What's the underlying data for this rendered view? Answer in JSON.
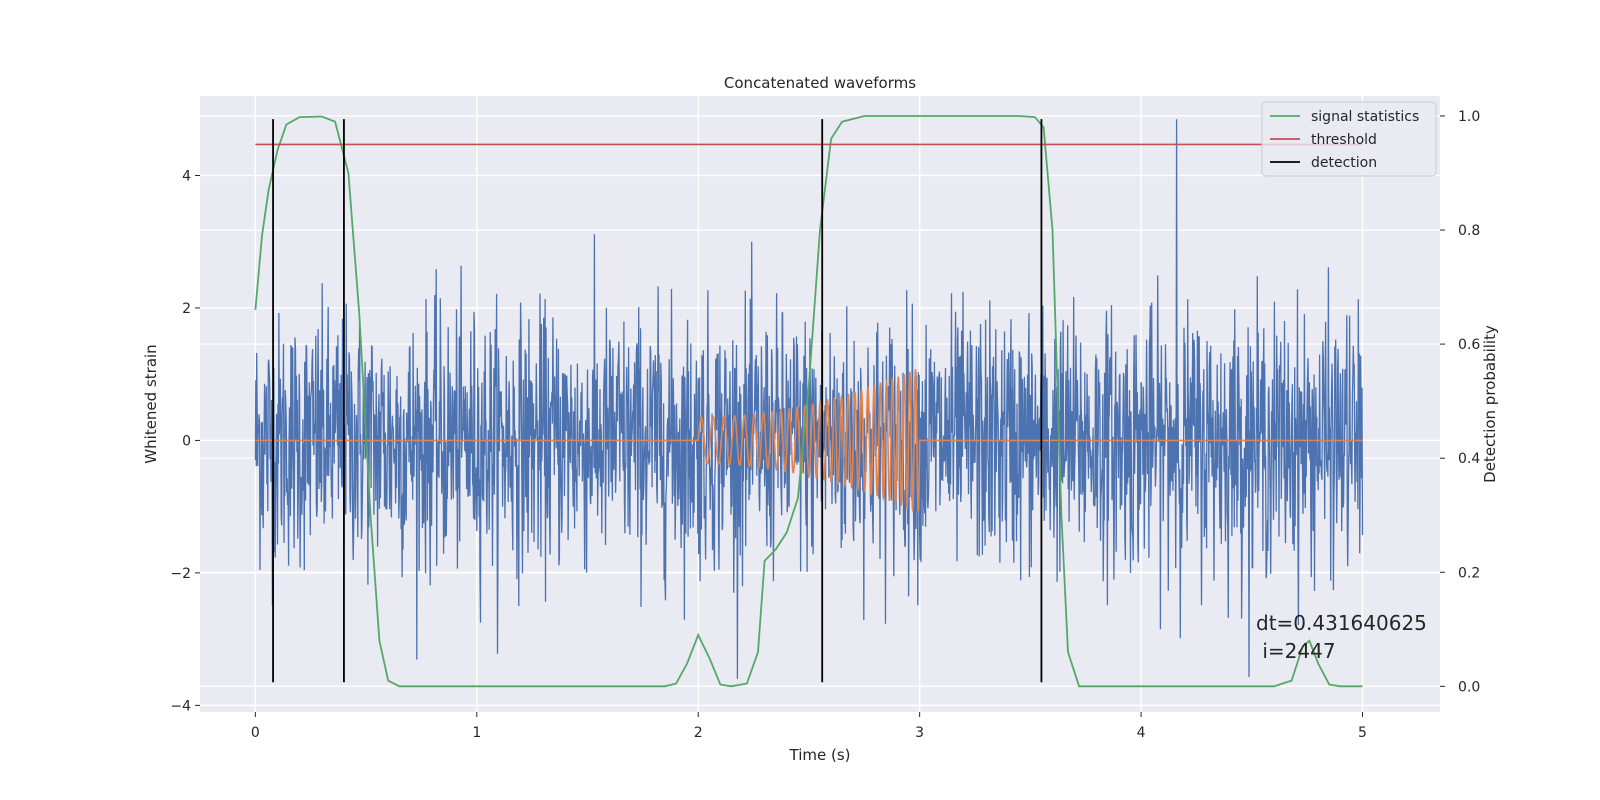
{
  "chart_data": {
    "type": "line",
    "title": "Concatenated waveforms",
    "xlabel": "Time (s)",
    "ylabel": "Whitened strain",
    "ylabel_right": "Detection probability",
    "xlim": [
      -0.25,
      5.35
    ],
    "ylim": [
      -4.1,
      5.2
    ],
    "ylim_right": [
      -0.045,
      1.035
    ],
    "xticks": [
      0,
      1,
      2,
      3,
      4,
      5
    ],
    "yticks": [
      -4,
      -2,
      0,
      2,
      4
    ],
    "yticks_right": [
      0.0,
      0.2,
      0.4,
      0.6,
      0.8,
      1.0
    ],
    "xtick_labels": [
      "0",
      "1",
      "2",
      "3",
      "4",
      "5"
    ],
    "ytick_labels": [
      "−4",
      "−2",
      "0",
      "2",
      "4"
    ],
    "ytick_right_labels": [
      "0.0",
      "0.2",
      "0.4",
      "0.6",
      "0.8",
      "1.0"
    ],
    "grid": true,
    "series": [
      {
        "name": "whitened strain (noise)",
        "axis": "left",
        "color": "#4c72b0",
        "description": "random noise, amplitude ~1, peaks to ~3.4, spike 4.85 at t=4.16",
        "t_range": [
          0,
          5
        ]
      },
      {
        "name": "injected signal",
        "axis": "left",
        "color": "#dd8452",
        "description": "chirp from t=2 to t=3, amplitude 0.35 to 1.1",
        "t_range": [
          2,
          3
        ]
      },
      {
        "name": "signal statistics",
        "axis": "right",
        "color": "#55a868",
        "points": [
          [
            0,
            0.66
          ],
          [
            0.03,
            0.79
          ],
          [
            0.06,
            0.87
          ],
          [
            0.1,
            0.94
          ],
          [
            0.14,
            0.985
          ],
          [
            0.2,
            0.998
          ],
          [
            0.3,
            0.999
          ],
          [
            0.36,
            0.99
          ],
          [
            0.42,
            0.9
          ],
          [
            0.47,
            0.65
          ],
          [
            0.52,
            0.3
          ],
          [
            0.56,
            0.08
          ],
          [
            0.6,
            0.01
          ],
          [
            0.65,
            0.0
          ],
          [
            1.85,
            0.0
          ],
          [
            1.9,
            0.005
          ],
          [
            1.95,
            0.04
          ],
          [
            2.0,
            0.09
          ],
          [
            2.05,
            0.05
          ],
          [
            2.1,
            0.003
          ],
          [
            2.15,
            0.0
          ],
          [
            2.22,
            0.005
          ],
          [
            2.27,
            0.06
          ],
          [
            2.3,
            0.22
          ],
          [
            2.35,
            0.24
          ],
          [
            2.4,
            0.27
          ],
          [
            2.45,
            0.33
          ],
          [
            2.5,
            0.53
          ],
          [
            2.55,
            0.8
          ],
          [
            2.6,
            0.96
          ],
          [
            2.65,
            0.99
          ],
          [
            2.75,
            1.0
          ],
          [
            3.45,
            1.0
          ],
          [
            3.52,
            0.998
          ],
          [
            3.56,
            0.98
          ],
          [
            3.6,
            0.8
          ],
          [
            3.64,
            0.3
          ],
          [
            3.67,
            0.06
          ],
          [
            3.72,
            0.0
          ],
          [
            4.6,
            0.0
          ],
          [
            4.68,
            0.01
          ],
          [
            4.73,
            0.07
          ],
          [
            4.76,
            0.08
          ],
          [
            4.8,
            0.04
          ],
          [
            4.85,
            0.003
          ],
          [
            4.9,
            0.0
          ],
          [
            5.0,
            0.0
          ]
        ]
      },
      {
        "name": "threshold",
        "axis": "right",
        "color": "#c44e52",
        "value": 0.95,
        "t_range": [
          0,
          5
        ]
      },
      {
        "name": "detection",
        "axis": "left",
        "color": "#000000",
        "x": [
          0.08,
          0.4,
          2.56,
          3.55
        ],
        "y_range": [
          -3.65,
          4.85
        ]
      }
    ],
    "legend": {
      "placement": "upper right",
      "entries": [
        {
          "label": "signal statistics",
          "color": "#55a868"
        },
        {
          "label": "threshold",
          "color": "#c44e52"
        },
        {
          "label": "detection",
          "color": "#000000"
        }
      ]
    },
    "annotation": {
      "line1": "dt=0.431640625",
      "line2": " i=2447"
    }
  }
}
